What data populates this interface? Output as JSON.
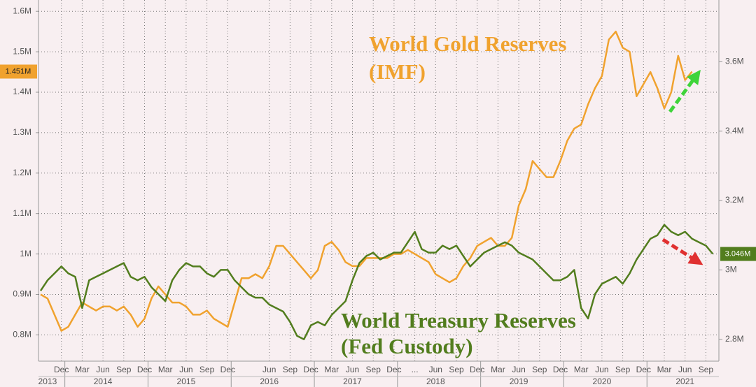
{
  "chart_data": {
    "type": "line",
    "x": [
      "2013-09",
      "2013-10",
      "2013-11",
      "2013-12",
      "2014-01",
      "2014-02",
      "2014-03",
      "2014-04",
      "2014-05",
      "2014-06",
      "2014-07",
      "2014-08",
      "2014-09",
      "2014-10",
      "2014-11",
      "2014-12",
      "2015-01",
      "2015-02",
      "2015-03",
      "2015-04",
      "2015-05",
      "2015-06",
      "2015-07",
      "2015-08",
      "2015-09",
      "2015-10",
      "2015-11",
      "2015-12",
      "2016-01",
      "2016-02",
      "2016-03",
      "2016-04",
      "2016-05",
      "2016-06",
      "2016-07",
      "2016-08",
      "2016-09",
      "2016-10",
      "2016-11",
      "2016-12",
      "2017-01",
      "2017-02",
      "2017-03",
      "2017-04",
      "2017-05",
      "2017-06",
      "2017-07",
      "2017-08",
      "2017-09",
      "2017-10",
      "2017-11",
      "2017-12",
      "2018-01",
      "2018-02",
      "2018-03",
      "2018-04",
      "2018-05",
      "2018-06",
      "2018-07",
      "2018-08",
      "2018-09",
      "2018-10",
      "2018-11",
      "2018-12",
      "2019-01",
      "2019-02",
      "2019-03",
      "2019-04",
      "2019-05",
      "2019-06",
      "2019-07",
      "2019-08",
      "2019-09",
      "2019-10",
      "2019-11",
      "2019-12",
      "2020-01",
      "2020-02",
      "2020-03",
      "2020-04",
      "2020-05",
      "2020-06",
      "2020-07",
      "2020-08",
      "2020-09",
      "2020-10",
      "2020-11",
      "2020-12",
      "2021-01",
      "2021-02",
      "2021-03",
      "2021-04",
      "2021-05",
      "2021-06",
      "2021-07",
      "2021-08",
      "2021-09",
      "2021-10"
    ],
    "series": [
      {
        "name": "World Gold Reserves",
        "name_note": "(IMF)",
        "color": "#f0a22e",
        "axis": "y",
        "end_label": "1.451M",
        "values": [
          0.9,
          0.89,
          0.85,
          0.81,
          0.82,
          0.85,
          0.88,
          0.87,
          0.86,
          0.87,
          0.87,
          0.86,
          0.87,
          0.85,
          0.82,
          0.84,
          0.89,
          0.92,
          0.9,
          0.88,
          0.88,
          0.87,
          0.85,
          0.85,
          0.86,
          0.84,
          0.83,
          0.82,
          0.88,
          0.94,
          0.94,
          0.95,
          0.94,
          0.97,
          1.02,
          1.02,
          1.0,
          0.98,
          0.96,
          0.94,
          0.96,
          1.02,
          1.03,
          1.01,
          0.98,
          0.97,
          0.97,
          0.99,
          0.99,
          0.99,
          0.99,
          1.0,
          1.0,
          1.01,
          1.0,
          0.99,
          0.98,
          0.95,
          0.94,
          0.93,
          0.94,
          0.97,
          0.99,
          1.02,
          1.03,
          1.04,
          1.02,
          1.02,
          1.04,
          1.12,
          1.16,
          1.23,
          1.21,
          1.19,
          1.19,
          1.23,
          1.28,
          1.31,
          1.32,
          1.37,
          1.41,
          1.44,
          1.53,
          1.55,
          1.51,
          1.5,
          1.39,
          1.42,
          1.45,
          1.41,
          1.36,
          1.4,
          1.49,
          1.43,
          1.451,
          null,
          null,
          null
        ]
      },
      {
        "name": "World Treasury Reserves",
        "name_note": "(Fed Custody)",
        "color": "#527d1e",
        "axis": "y2",
        "end_label": "3.046M",
        "values": [
          2.94,
          2.97,
          2.99,
          3.01,
          2.99,
          2.98,
          2.89,
          2.97,
          2.98,
          2.99,
          3.0,
          3.01,
          3.02,
          2.98,
          2.97,
          2.98,
          2.95,
          2.93,
          2.91,
          2.97,
          3.0,
          3.02,
          3.01,
          3.01,
          2.99,
          2.98,
          3.0,
          3.0,
          2.97,
          2.95,
          2.93,
          2.92,
          2.92,
          2.9,
          2.89,
          2.88,
          2.85,
          2.81,
          2.8,
          2.84,
          2.85,
          2.84,
          2.87,
          2.89,
          2.91,
          2.97,
          3.02,
          3.04,
          3.05,
          3.03,
          3.04,
          3.05,
          3.05,
          3.08,
          3.11,
          3.06,
          3.05,
          3.05,
          3.07,
          3.06,
          3.07,
          3.04,
          3.01,
          3.03,
          3.05,
          3.06,
          3.07,
          3.08,
          3.07,
          3.05,
          3.04,
          3.03,
          3.01,
          2.99,
          2.97,
          2.97,
          2.98,
          3.0,
          2.89,
          2.86,
          2.93,
          2.96,
          2.97,
          2.98,
          2.96,
          2.99,
          3.03,
          3.06,
          3.09,
          3.1,
          3.13,
          3.11,
          3.1,
          3.11,
          3.09,
          3.08,
          3.07,
          3.046
        ]
      }
    ],
    "ylim": [
      0.735,
      1.628
    ],
    "yticks": [
      {
        "value": 0.8,
        "label": "0.8M"
      },
      {
        "value": 0.9,
        "label": "0.9M"
      },
      {
        "value": 1,
        "label": "1M"
      },
      {
        "value": 1.1,
        "label": "1.1M"
      },
      {
        "value": 1.2,
        "label": "1.2M"
      },
      {
        "value": 1.3,
        "label": "1.3M"
      },
      {
        "value": 1.4,
        "label": "1.4M"
      },
      {
        "value": 1.5,
        "label": "1.5M"
      },
      {
        "value": 1.6,
        "label": "1.6M"
      }
    ],
    "y2lim": [
      2.737,
      3.778
    ],
    "y2ticks": [
      {
        "value": 2.8,
        "label": "2.8M"
      },
      {
        "value": 3,
        "label": "3M"
      },
      {
        "value": 3.2,
        "label": "3.2M"
      },
      {
        "value": 3.4,
        "label": "3.4M"
      },
      {
        "value": 3.6,
        "label": "3.6M"
      }
    ],
    "xticks": [
      {
        "value": "2013-12",
        "label": "Dec"
      },
      {
        "value": "2014-03",
        "label": "Mar"
      },
      {
        "value": "2014-06",
        "label": "Jun"
      },
      {
        "value": "2014-09",
        "label": "Sep"
      },
      {
        "value": "2014-12",
        "label": "Dec"
      },
      {
        "value": "2015-03",
        "label": "Mar"
      },
      {
        "value": "2015-06",
        "label": "Jun"
      },
      {
        "value": "2015-09",
        "label": "Sep"
      },
      {
        "value": "2015-12",
        "label": "Dec"
      },
      {
        "value": "2016-06",
        "label": "Jun"
      },
      {
        "value": "2016-09",
        "label": "Sep"
      },
      {
        "value": "2016-12",
        "label": "Dec"
      },
      {
        "value": "2017-03",
        "label": "Mar"
      },
      {
        "value": "2017-06",
        "label": "Jun"
      },
      {
        "value": "2017-09",
        "label": "Sep"
      },
      {
        "value": "2017-12",
        "label": "Dec"
      },
      {
        "value": "2018-03",
        "label": "..."
      },
      {
        "value": "2018-06",
        "label": "Jun"
      },
      {
        "value": "2018-09",
        "label": "Sep"
      },
      {
        "value": "2018-12",
        "label": "Dec"
      },
      {
        "value": "2019-03",
        "label": "Mar"
      },
      {
        "value": "2019-06",
        "label": "Jun"
      },
      {
        "value": "2019-09",
        "label": "Sep"
      },
      {
        "value": "2019-12",
        "label": "Dec"
      },
      {
        "value": "2020-03",
        "label": "Mar"
      },
      {
        "value": "2020-06",
        "label": "Jun"
      },
      {
        "value": "2020-09",
        "label": "Sep"
      },
      {
        "value": "2020-12",
        "label": "Dec"
      },
      {
        "value": "2021-03",
        "label": "Mar"
      },
      {
        "value": "2021-06",
        "label": "Jun"
      },
      {
        "value": "2021-09",
        "label": "Sep"
      }
    ],
    "years": [
      {
        "value": "2013-10",
        "label": "2013"
      },
      {
        "value": "2014-06",
        "label": "2014"
      },
      {
        "value": "2015-06",
        "label": "2015"
      },
      {
        "value": "2016-06",
        "label": "2016"
      },
      {
        "value": "2017-06",
        "label": "2017"
      },
      {
        "value": "2018-06",
        "label": "2018"
      },
      {
        "value": "2019-06",
        "label": "2019"
      },
      {
        "value": "2020-06",
        "label": "2020"
      },
      {
        "value": "2021-06",
        "label": "2021"
      }
    ],
    "grid": true
  }
}
